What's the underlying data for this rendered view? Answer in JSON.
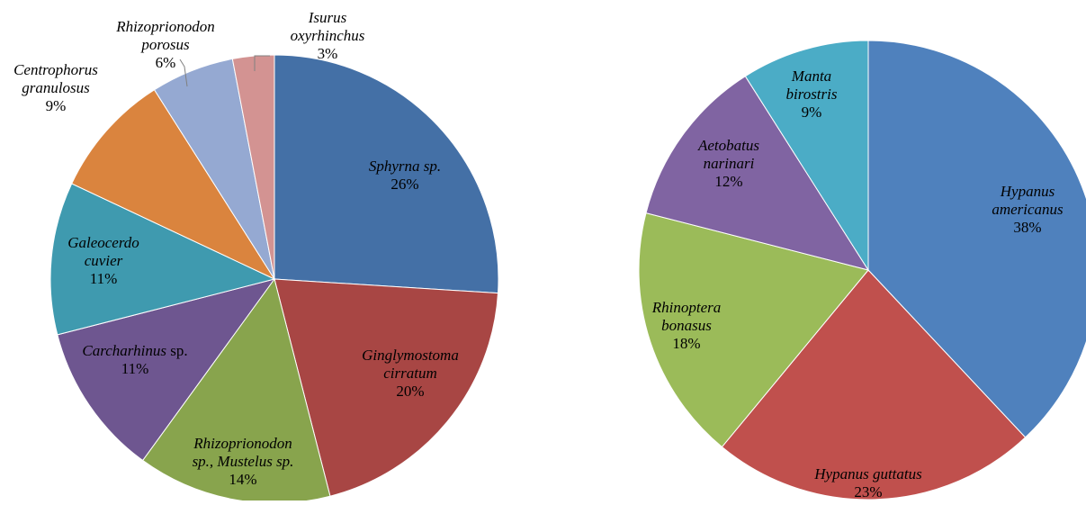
{
  "chart_data": [
    {
      "type": "pie",
      "slices": [
        {
          "name": [
            "Sphyrna sp."
          ],
          "value": 26,
          "label": "26%",
          "color": "#4470A6"
        },
        {
          "name": [
            "Ginglymostoma",
            "cirratum"
          ],
          "value": 20,
          "label": "20%",
          "color": "#A84644"
        },
        {
          "name": [
            "Rhizoprionodon",
            "sp., Mustelus sp."
          ],
          "value": 14,
          "label": "14%",
          "color": "#88A44D"
        },
        {
          "name": [
            "Carcharhinus sp."
          ],
          "value": 11,
          "label": "11%",
          "color": "#6E5690"
        },
        {
          "name": [
            "Galeocerdo",
            "cuvier"
          ],
          "value": 11,
          "label": "11%",
          "color": "#3F9AAF"
        },
        {
          "name": [
            "Centrophorus",
            "granulosus"
          ],
          "value": 9,
          "label": "9%",
          "color": "#DA843E"
        },
        {
          "name": [
            "Rhizoprionodon",
            "porosus"
          ],
          "value": 6,
          "label": "6%",
          "color": "#95A9D2"
        },
        {
          "name": [
            "Isurus",
            "oxyrhinchus"
          ],
          "value": 3,
          "label": "3%",
          "color": "#D39392"
        }
      ]
    },
    {
      "type": "pie",
      "slices": [
        {
          "name": [
            "Hypanus",
            "americanus"
          ],
          "value": 38,
          "label": "38%",
          "color": "#4F81BD"
        },
        {
          "name": [
            "Hypanus guttatus"
          ],
          "value": 23,
          "label": "23%",
          "color": "#C0504D"
        },
        {
          "name": [
            "Rhinoptera",
            "bonasus"
          ],
          "value": 18,
          "label": "18%",
          "color": "#9BBB59"
        },
        {
          "name": [
            "Aetobatus",
            "narinari"
          ],
          "value": 12,
          "label": "12%",
          "color": "#8064A2"
        },
        {
          "name": [
            "Manta",
            "birostris"
          ],
          "value": 9,
          "label": "9%",
          "color": "#4BACC6"
        }
      ]
    }
  ]
}
